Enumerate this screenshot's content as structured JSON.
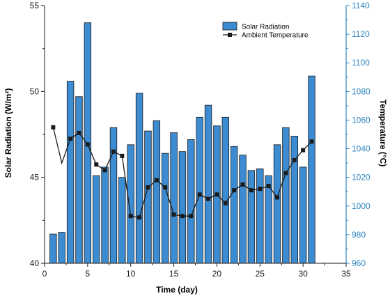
{
  "chart_data": {
    "type": "bar",
    "x": [
      1,
      2,
      3,
      4,
      5,
      6,
      7,
      8,
      9,
      10,
      11,
      12,
      13,
      14,
      15,
      16,
      17,
      18,
      19,
      20,
      21,
      22,
      23,
      24,
      25,
      26,
      27,
      28,
      29,
      30,
      31
    ],
    "series": [
      {
        "name": "Solar Radiation",
        "type": "bar",
        "axis": "left",
        "color": "#3d8bd0",
        "values": [
          41.7,
          41.8,
          50.6,
          49.7,
          54.0,
          45.1,
          45.6,
          47.9,
          45.0,
          46.9,
          49.9,
          47.7,
          48.3,
          46.4,
          47.6,
          46.5,
          47.2,
          48.5,
          49.2,
          48.0,
          48.5,
          46.8,
          46.3,
          45.4,
          45.5,
          45.1,
          46.9,
          47.9,
          47.4,
          45.6,
          50.9
        ]
      },
      {
        "name": "Ambient Temperature",
        "type": "line",
        "axis": "right",
        "color": "#1a1a1a",
        "values": [
          1055,
          1030,
          1047,
          1051,
          1043,
          1029,
          1025,
          1038,
          1035,
          993,
          992,
          1013,
          1018,
          1013,
          994,
          993,
          993,
          1008,
          1005,
          1008,
          1002,
          1011,
          1015,
          1011,
          1012,
          1014,
          1006,
          1023,
          1032,
          1039,
          1045
        ]
      }
    ],
    "xlabel": "Time (day)",
    "ylabel": "Solar Radiation (W/m²)",
    "y2label": "Temperature (°C)",
    "xlim": [
      0,
      35
    ],
    "ylim": [
      40,
      55
    ],
    "y2lim": [
      960,
      1140
    ],
    "xticks": [
      "0",
      "5",
      "10",
      "15",
      "20",
      "25",
      "30",
      "35"
    ],
    "yticks": [
      "40",
      "45",
      "50",
      "55"
    ],
    "y2ticks": [
      "960",
      "980",
      "1000",
      "1020",
      "1040",
      "1060",
      "1080",
      "1100",
      "1120",
      "1140"
    ],
    "legend_position": "top-right",
    "grid": false
  }
}
